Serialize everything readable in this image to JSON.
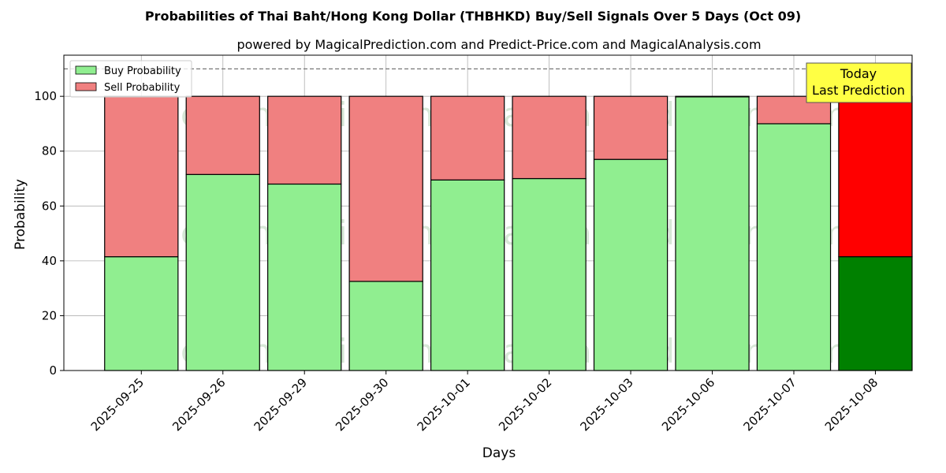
{
  "chart_data": {
    "type": "bar",
    "stacked": true,
    "title": "Probabilities of Thai Baht/Hong Kong Dollar (THBHKD) Buy/Sell Signals Over 5 Days (Oct 09)",
    "subtitle": "powered by MagicalPrediction.com and Predict-Price.com and MagicalAnalysis.com",
    "xlabel": "Days",
    "ylabel": "Probability",
    "ylim": [
      0,
      115
    ],
    "yticks": [
      0,
      20,
      40,
      60,
      80,
      100
    ],
    "grid": true,
    "legend_position": "top-left",
    "categories": [
      "2025-09-25",
      "2025-09-26",
      "2025-09-29",
      "2025-09-30",
      "2025-10-01",
      "2025-10-02",
      "2025-10-03",
      "2025-10-06",
      "2025-10-07",
      "2025-10-08"
    ],
    "series": [
      {
        "name": "Buy Probability",
        "values": [
          41.5,
          71.5,
          68,
          32.5,
          69.5,
          70,
          77,
          99.8,
          90,
          41.5
        ]
      },
      {
        "name": "Sell Probability",
        "values": [
          58.5,
          28.5,
          32,
          67.5,
          30.5,
          30,
          23,
          0.2,
          10,
          58.5
        ]
      }
    ],
    "colors": {
      "buy": "#90ee90",
      "sell": "#f08080",
      "buy_highlight": "#008000",
      "sell_highlight": "#ff0000",
      "annotation_bg": "#ffff44"
    },
    "highlight_index": 9,
    "reference_line": 110,
    "annotation": {
      "line1": "Today",
      "line2": "Last Prediction"
    },
    "watermarks": [
      "MagicalAnalysis.com",
      "MagicalPrediction.com"
    ]
  }
}
